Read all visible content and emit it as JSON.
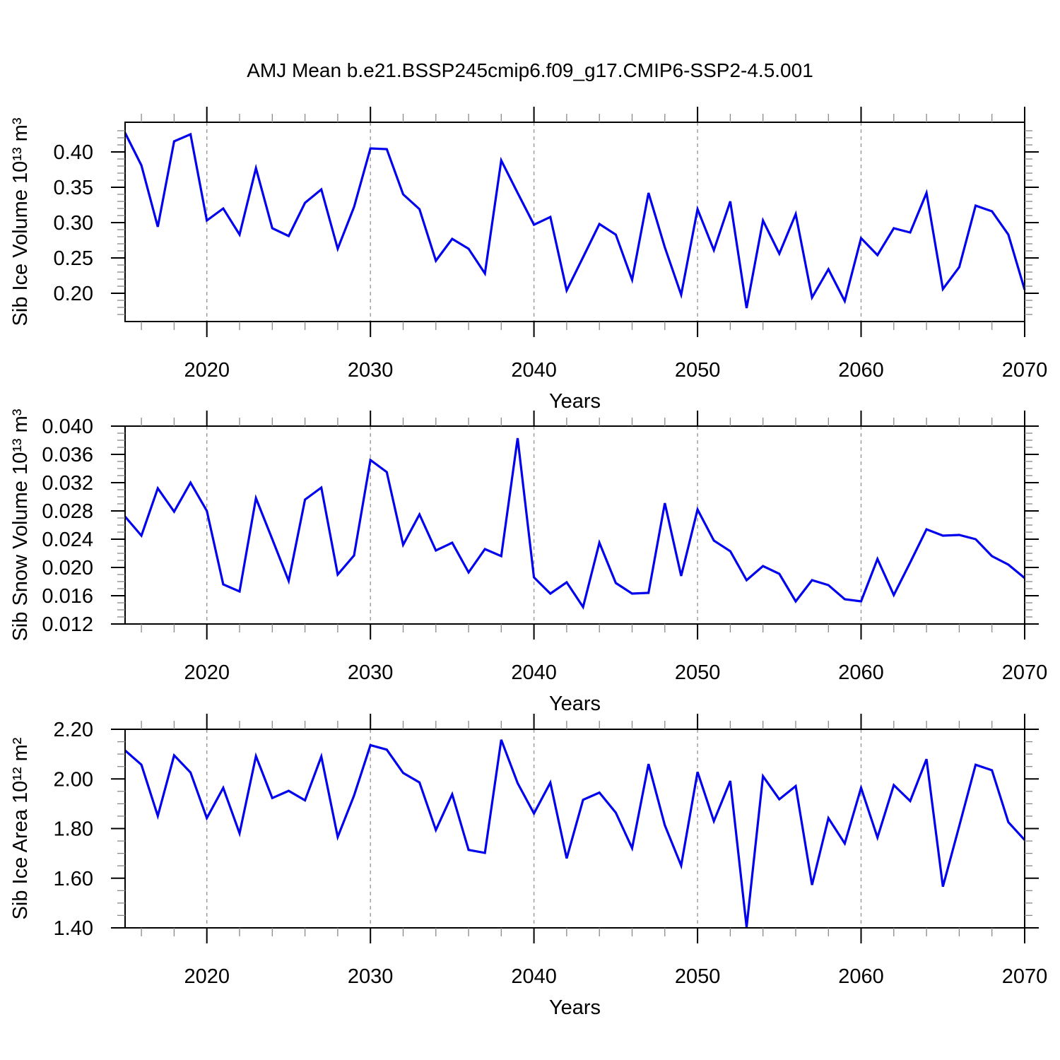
{
  "title": "AMJ Mean b.e21.BSSP245cmip6.f09_g17.CMIP6-SSP2-4.5.001",
  "style": {
    "line_color": "#0000ee",
    "frame_color": "#000000",
    "major_tick_color": "#000000",
    "minor_tick_color": "#888888",
    "grid_color": "#999999",
    "text_color": "#000000"
  },
  "chart_data": [
    {
      "name": "sib-ice-volume-chart",
      "type": "line",
      "title": "",
      "xlabel": "Years",
      "ylabel": "Sib Ice Volume 10¹³ m³",
      "x_range": [
        2015,
        2070
      ],
      "x_major_ticks": [
        2020,
        2030,
        2040,
        2050,
        2060,
        2070
      ],
      "x_tick_labels": [
        "2020",
        "2030",
        "2040",
        "2050",
        "2060",
        "2070"
      ],
      "x_minor_step": 2,
      "grid_years": [
        2020,
        2030,
        2040,
        2050,
        2060
      ],
      "ylim": [
        0.16,
        0.442
      ],
      "y_major_ticks": [
        0.2,
        0.25,
        0.3,
        0.35,
        0.4
      ],
      "y_tick_labels": [
        "0.20",
        "0.25",
        "0.30",
        "0.35",
        "0.40"
      ],
      "y_minor_step": 0.01,
      "grid": "x-dashed",
      "legend": "none",
      "values": [
        0.427,
        0.381,
        0.294,
        0.415,
        0.425,
        0.303,
        0.32,
        0.283,
        0.377,
        0.292,
        0.281,
        0.328,
        0.347,
        0.263,
        0.322,
        0.405,
        0.404,
        0.34,
        0.319,
        0.246,
        0.277,
        0.263,
        0.228,
        0.388,
        0.342,
        0.297,
        0.308,
        0.204,
        0.251,
        0.298,
        0.283,
        0.219,
        0.342,
        0.265,
        0.198,
        0.319,
        0.261,
        0.33,
        0.179,
        0.303,
        0.256,
        0.312,
        0.194,
        0.234,
        0.189,
        0.278,
        0.254,
        0.292,
        0.286,
        0.342,
        0.206,
        0.237,
        0.324,
        0.316,
        0.283,
        0.205
      ]
    },
    {
      "name": "sib-snow-volume-chart",
      "type": "line",
      "title": "",
      "xlabel": "Years",
      "ylabel": "Sib Snow Volume 10¹³ m³",
      "x_range": [
        2015,
        2070
      ],
      "x_major_ticks": [
        2020,
        2030,
        2040,
        2050,
        2060,
        2070
      ],
      "x_tick_labels": [
        "2020",
        "2030",
        "2040",
        "2050",
        "2060",
        "2070"
      ],
      "x_minor_step": 2,
      "grid_years": [
        2020,
        2030,
        2040,
        2050,
        2060
      ],
      "ylim": [
        0.012,
        0.04
      ],
      "y_major_ticks": [
        0.012,
        0.016,
        0.02,
        0.024,
        0.028,
        0.032,
        0.036,
        0.04
      ],
      "y_tick_labels": [
        "0.012",
        "0.016",
        "0.020",
        "0.024",
        "0.028",
        "0.032",
        "0.036",
        "0.040"
      ],
      "y_minor_step": 0.001,
      "grid": "x-dashed",
      "legend": "none",
      "values": [
        0.0272,
        0.0245,
        0.0312,
        0.0279,
        0.032,
        0.028,
        0.0176,
        0.0166,
        0.0298,
        0.024,
        0.0181,
        0.0296,
        0.0313,
        0.019,
        0.0217,
        0.0352,
        0.0335,
        0.0232,
        0.0275,
        0.0224,
        0.0235,
        0.0193,
        0.0226,
        0.0216,
        0.0383,
        0.0186,
        0.0163,
        0.0179,
        0.0144,
        0.0235,
        0.0178,
        0.0163,
        0.0164,
        0.0291,
        0.0188,
        0.0282,
        0.0238,
        0.0223,
        0.0182,
        0.0202,
        0.0191,
        0.0152,
        0.0182,
        0.0175,
        0.0155,
        0.0152,
        0.0212,
        0.0161,
        0.0207,
        0.0254,
        0.0245,
        0.0246,
        0.024,
        0.0216,
        0.0204,
        0.0185
      ]
    },
    {
      "name": "sib-ice-area-chart",
      "type": "line",
      "title": "",
      "xlabel": "Years",
      "ylabel": "Sib Ice Area 10¹² m²",
      "x_range": [
        2015,
        2070
      ],
      "x_major_ticks": [
        2020,
        2030,
        2040,
        2050,
        2060,
        2070
      ],
      "x_tick_labels": [
        "2020",
        "2030",
        "2040",
        "2050",
        "2060",
        "2070"
      ],
      "x_minor_step": 2,
      "grid_years": [
        2020,
        2030,
        2040,
        2050,
        2060
      ],
      "ylim": [
        1.4,
        2.2
      ],
      "y_major_ticks": [
        1.4,
        1.6,
        1.8,
        2.0,
        2.2
      ],
      "y_tick_labels": [
        "1.40",
        "1.60",
        "1.80",
        "2.00",
        "2.20"
      ],
      "y_minor_step": 0.05,
      "grid": "x-dashed",
      "legend": "none",
      "values": [
        2.115,
        2.057,
        1.851,
        2.095,
        2.026,
        1.842,
        1.964,
        1.781,
        2.092,
        1.923,
        1.952,
        1.914,
        2.09,
        1.766,
        1.933,
        2.136,
        2.118,
        2.024,
        1.986,
        1.794,
        1.938,
        1.714,
        1.702,
        2.158,
        1.983,
        1.861,
        1.985,
        1.68,
        1.916,
        1.945,
        1.864,
        1.721,
        2.06,
        1.813,
        1.651,
        2.028,
        1.83,
        1.992,
        1.403,
        2.011,
        1.918,
        1.971,
        1.573,
        1.842,
        1.74,
        1.964,
        1.764,
        1.975,
        1.911,
        2.08,
        1.566,
        1.81,
        2.057,
        2.035,
        1.826,
        1.754
      ]
    }
  ]
}
